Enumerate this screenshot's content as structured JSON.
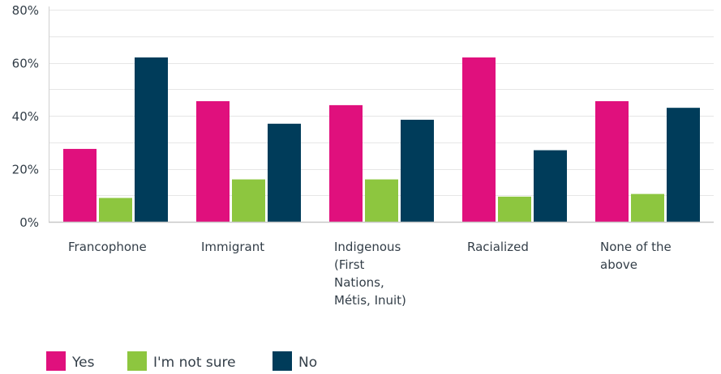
{
  "chart_data": {
    "type": "bar",
    "categories": [
      [
        "Francophone"
      ],
      [
        "Immigrant"
      ],
      [
        "Indigenous",
        "(First",
        "Nations,",
        "Métis, Inuit)"
      ],
      [
        "Racialized"
      ],
      [
        "None of the",
        "above"
      ]
    ],
    "series": [
      {
        "name": "Yes",
        "color": "#e0107d",
        "values": [
          27.5,
          45.5,
          44,
          62,
          45.5
        ]
      },
      {
        "name": "I'm not sure",
        "color": "#8dc63f",
        "values": [
          9,
          16,
          16,
          9.5,
          10.5
        ]
      },
      {
        "name": "No",
        "color": "#003c5a",
        "values": [
          62,
          37,
          38.5,
          27,
          43
        ]
      }
    ],
    "ylim": [
      0,
      80
    ],
    "yticks": [
      0,
      20,
      40,
      60,
      80
    ],
    "ytick_labels": [
      "0%",
      "20%",
      "40%",
      "60%",
      "80%"
    ],
    "grid": true,
    "legend_position": "bottom-left",
    "title": "",
    "xlabel": "",
    "ylabel": ""
  }
}
